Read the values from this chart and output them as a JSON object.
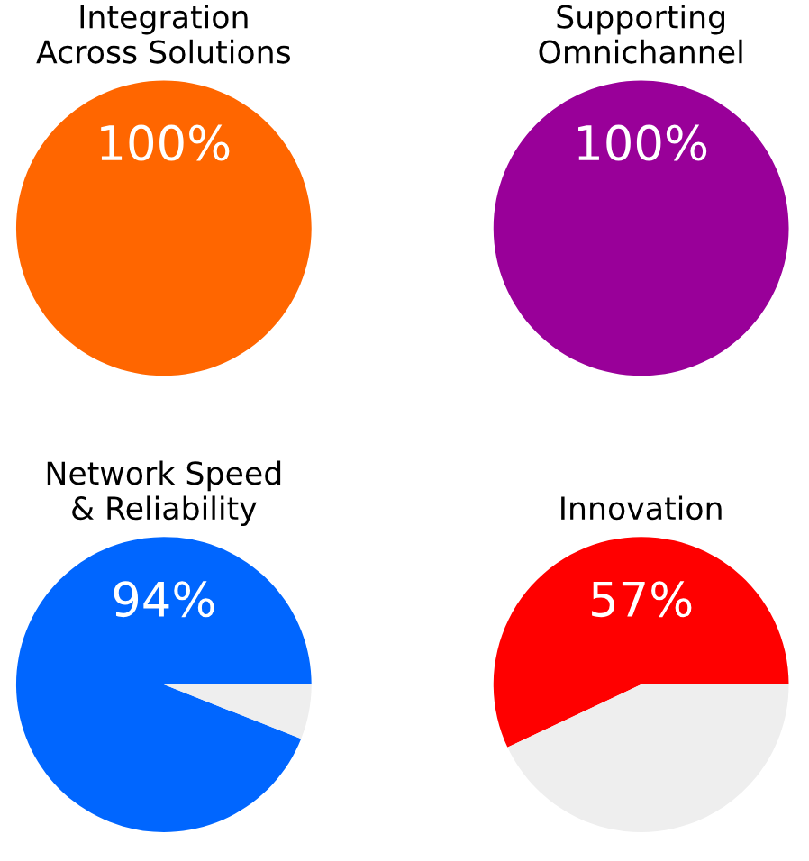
{
  "chart_data": [
    {
      "type": "pie",
      "title": "Integration\nAcross Solutions",
      "categories": [
        null,
        null
      ],
      "values": [
        100,
        0
      ],
      "colors": [
        "#ff6600",
        "#eeeeee"
      ],
      "value_labels": [
        "100%",
        null
      ]
    },
    {
      "type": "pie",
      "title": "Supporting\nOmnichannel",
      "categories": [
        null,
        null
      ],
      "values": [
        100,
        0
      ],
      "colors": [
        "#990099",
        "#eeeeee"
      ],
      "value_labels": [
        "100%",
        null
      ]
    },
    {
      "type": "pie",
      "title": "Network Speed\n& Reliability",
      "categories": [
        null,
        null
      ],
      "values": [
        94,
        6
      ],
      "colors": [
        "#0066ff",
        "#eeeeee"
      ],
      "value_labels": [
        "94%",
        null
      ]
    },
    {
      "type": "pie",
      "title": "Innovation",
      "categories": [
        null,
        null
      ],
      "values": [
        57,
        43
      ],
      "colors": [
        "#ff0000",
        "#eeeeee"
      ],
      "value_labels": [
        "57%",
        null
      ]
    }
  ]
}
